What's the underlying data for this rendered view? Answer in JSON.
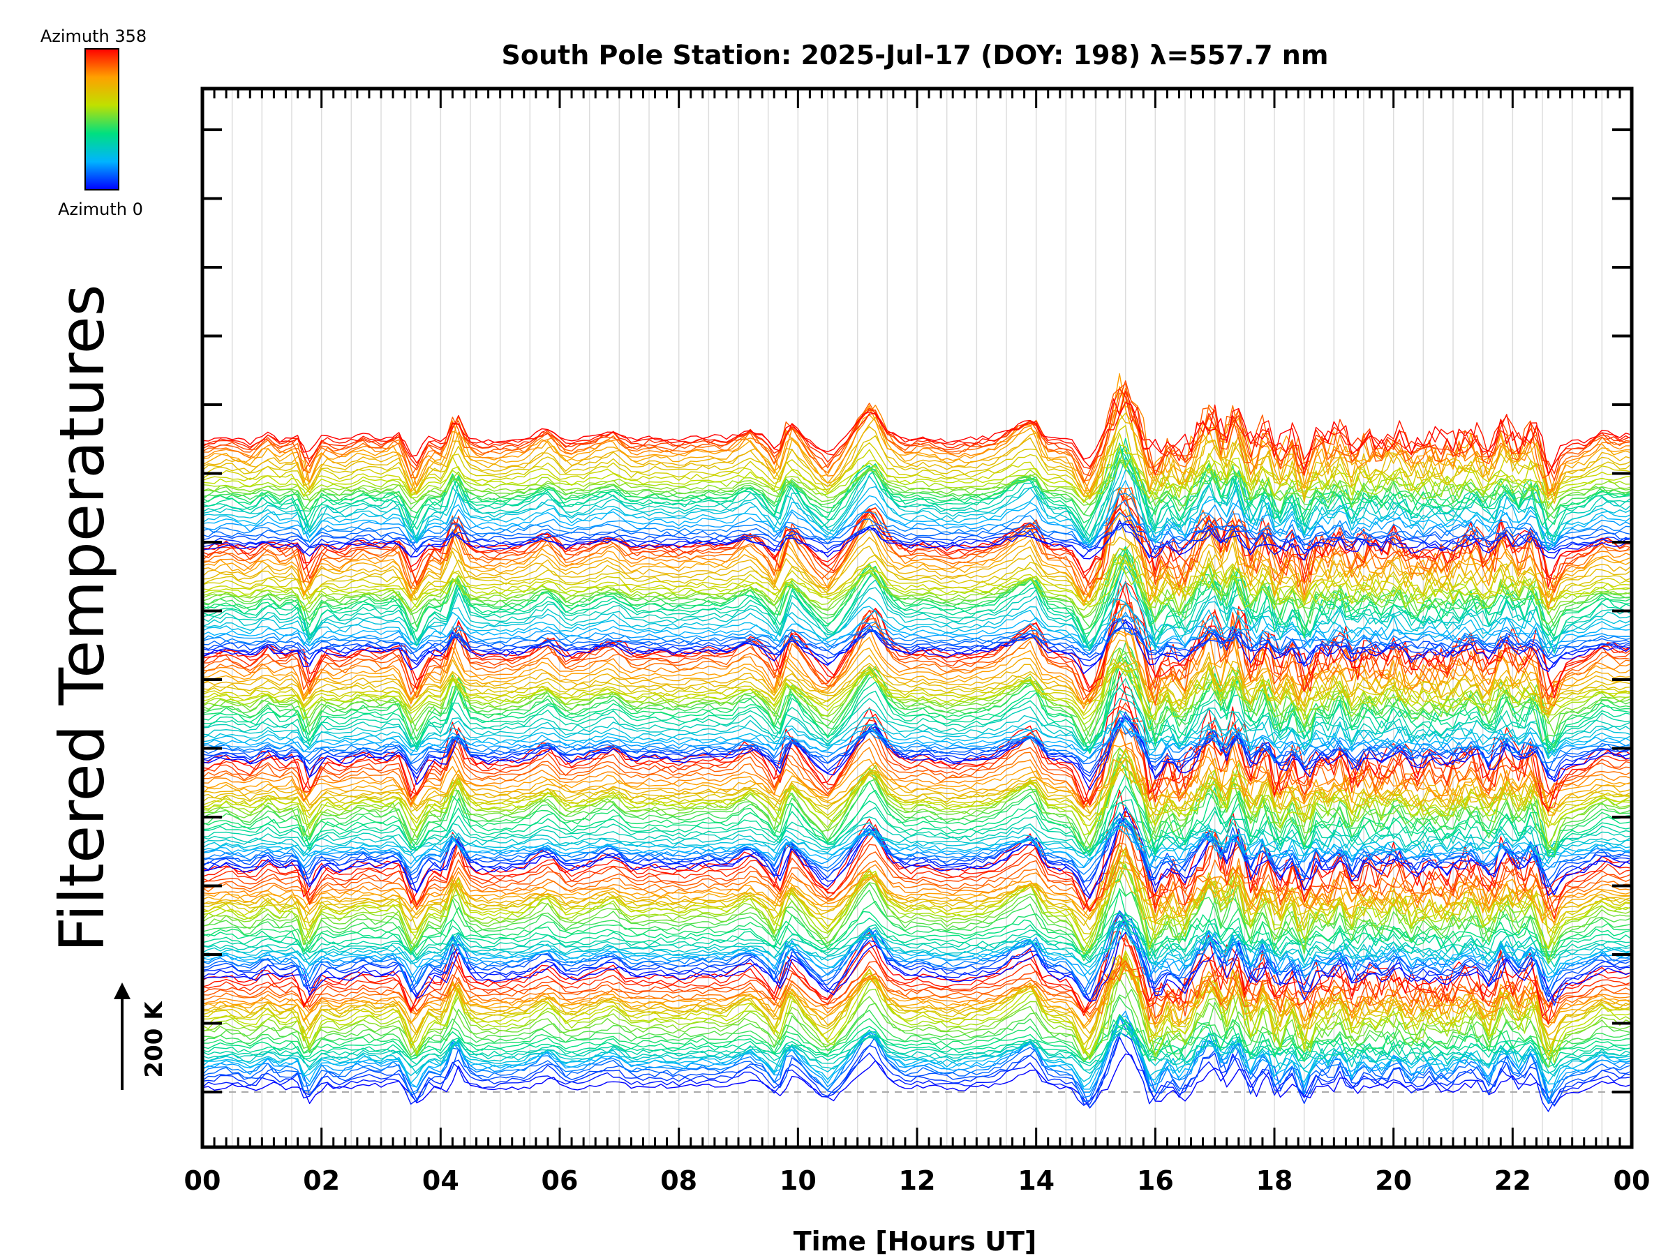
{
  "chart_data": {
    "type": "line",
    "title": "South Pole Station: 2025-Jul-17 (DOY: 198) λ=557.7 nm",
    "xlabel": "Time [Hours UT]",
    "ylabel": "Filtered Temperatures",
    "x_range": [
      0,
      24
    ],
    "x_tick_labels": [
      "00",
      "02",
      "04",
      "06",
      "08",
      "10",
      "12",
      "14",
      "16",
      "18",
      "20",
      "22",
      "00"
    ],
    "colorbar": {
      "top_label": "Azimuth  358",
      "bottom_label": "Azimuth  0",
      "min": 0,
      "max": 358,
      "colormap": "rainbow"
    },
    "scale_bar": {
      "label": "200 K",
      "kelvin": 200
    },
    "num_stacked_groups": 6,
    "traces_per_group": 36,
    "trace_spacing_kelvin": 6,
    "baseline_dashed": true,
    "common_signal_kelvin": [
      [
        0.0,
        10
      ],
      [
        0.4,
        25
      ],
      [
        0.8,
        5
      ],
      [
        1.1,
        35
      ],
      [
        1.3,
        12
      ],
      [
        1.6,
        30
      ],
      [
        1.75,
        -40
      ],
      [
        2.0,
        25
      ],
      [
        2.3,
        8
      ],
      [
        2.7,
        30
      ],
      [
        3.0,
        18
      ],
      [
        3.3,
        35
      ],
      [
        3.55,
        -50
      ],
      [
        3.8,
        20
      ],
      [
        4.05,
        5
      ],
      [
        4.25,
        90
      ],
      [
        4.45,
        20
      ],
      [
        4.7,
        10
      ],
      [
        5.0,
        12
      ],
      [
        5.4,
        18
      ],
      [
        5.8,
        50
      ],
      [
        6.1,
        10
      ],
      [
        6.5,
        25
      ],
      [
        6.9,
        45
      ],
      [
        7.2,
        15
      ],
      [
        7.6,
        22
      ],
      [
        8.0,
        15
      ],
      [
        8.4,
        25
      ],
      [
        8.8,
        20
      ],
      [
        9.2,
        50
      ],
      [
        9.5,
        15
      ],
      [
        9.65,
        -20
      ],
      [
        9.85,
        70
      ],
      [
        10.2,
        10
      ],
      [
        10.5,
        -30
      ],
      [
        10.8,
        20
      ],
      [
        11.1,
        90
      ],
      [
        11.25,
        110
      ],
      [
        11.5,
        40
      ],
      [
        11.8,
        15
      ],
      [
        12.1,
        25
      ],
      [
        12.5,
        10
      ],
      [
        12.9,
        15
      ],
      [
        13.3,
        25
      ],
      [
        13.7,
        60
      ],
      [
        13.95,
        80
      ],
      [
        14.15,
        20
      ],
      [
        14.4,
        15
      ],
      [
        14.6,
        10
      ],
      [
        14.85,
        -60
      ],
      [
        15.1,
        10
      ],
      [
        15.3,
        100
      ],
      [
        15.45,
        150
      ],
      [
        15.7,
        80
      ],
      [
        15.95,
        -40
      ],
      [
        16.2,
        20
      ],
      [
        16.45,
        -20
      ],
      [
        16.7,
        40
      ],
      [
        16.95,
        95
      ],
      [
        17.15,
        20
      ],
      [
        17.35,
        100
      ],
      [
        17.6,
        -10
      ],
      [
        17.85,
        60
      ],
      [
        18.05,
        -20
      ],
      [
        18.3,
        40
      ],
      [
        18.5,
        -40
      ],
      [
        18.7,
        30
      ],
      [
        18.9,
        10
      ],
      [
        19.1,
        50
      ],
      [
        19.3,
        -10
      ],
      [
        19.5,
        30
      ],
      [
        19.8,
        10
      ],
      [
        20.05,
        40
      ],
      [
        20.3,
        0
      ],
      [
        20.6,
        20
      ],
      [
        20.85,
        5
      ],
      [
        21.1,
        20
      ],
      [
        21.35,
        40
      ],
      [
        21.6,
        -10
      ],
      [
        21.85,
        60
      ],
      [
        22.1,
        10
      ],
      [
        22.35,
        55
      ],
      [
        22.6,
        -60
      ],
      [
        22.85,
        0
      ],
      [
        23.2,
        10
      ],
      [
        23.5,
        40
      ],
      [
        23.75,
        25
      ],
      [
        24.0,
        30
      ]
    ],
    "irregular_amplification_window_hours": [
      15.0,
      22.8
    ]
  }
}
